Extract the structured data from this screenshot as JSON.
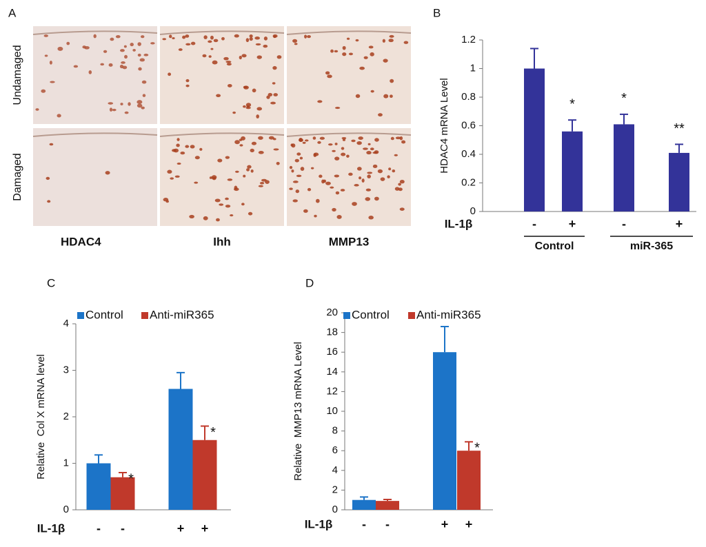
{
  "panel_a": {
    "label": "A",
    "rows": [
      "Undamaged",
      "Damaged"
    ],
    "columns": [
      "HDAC4",
      "Ihh",
      "MMP13"
    ]
  },
  "chart_data": [
    {
      "type": "bar",
      "panel": "B",
      "ylabel": "HDAC4 mRNA Level",
      "xlabel": "IL-1β",
      "categories": [
        "-",
        "+",
        "-",
        "+"
      ],
      "values": [
        1,
        0.56,
        0.61,
        0.41
      ],
      "errors": [
        0.14,
        0.08,
        0.07,
        0.06
      ],
      "significance": [
        null,
        "*",
        "*",
        "**"
      ],
      "color": "#333399",
      "ylim": [
        0,
        1.2
      ],
      "yticks": [
        0,
        0.2,
        0.4,
        0.6,
        0.8,
        1,
        1.2
      ],
      "group_labels": [
        "Control",
        "miR-365"
      ]
    },
    {
      "type": "bar",
      "panel": "C",
      "ylabel": "Relative  Col X mRNA level",
      "xlabel": "IL-1β",
      "categories": [
        "-",
        "+"
      ],
      "series": [
        {
          "name": "Control",
          "color": "#1c74c8",
          "values": [
            1,
            2.6
          ],
          "errors": [
            0.18,
            0.35
          ]
        },
        {
          "name": "Anti-miR365",
          "color": "#c0392b",
          "values": [
            0.7,
            1.5
          ],
          "errors": [
            0.1,
            0.3
          ],
          "significance": [
            "*",
            "*"
          ]
        }
      ],
      "ylim": [
        0,
        4
      ],
      "yticks": [
        0,
        1,
        2,
        3,
        4
      ]
    },
    {
      "type": "bar",
      "panel": "D",
      "ylabel": "Relative  MMP13 mRNA Level",
      "xlabel": "IL-1β",
      "categories": [
        "-",
        "+"
      ],
      "series": [
        {
          "name": "Control",
          "color": "#1c74c8",
          "values": [
            1,
            16
          ],
          "errors": [
            0.3,
            2.6
          ]
        },
        {
          "name": "Anti-miR365",
          "color": "#c0392b",
          "values": [
            0.9,
            6
          ],
          "errors": [
            0.15,
            0.9
          ],
          "significance": [
            null,
            "*"
          ]
        }
      ],
      "ylim": [
        0,
        20
      ],
      "yticks": [
        0,
        2,
        4,
        6,
        8,
        10,
        12,
        14,
        16,
        18,
        20
      ]
    }
  ]
}
